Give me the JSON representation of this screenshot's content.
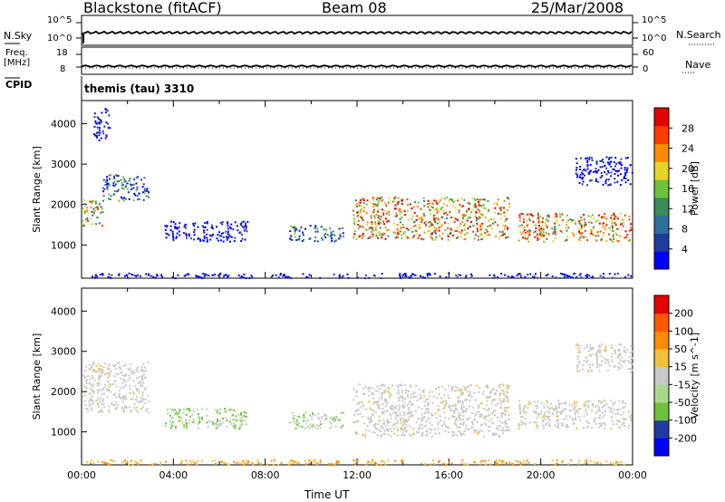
{
  "header": {
    "station": "Blackstone (fitACF)",
    "beam": "Beam 08",
    "date": "25/Mar/2008"
  },
  "summary_panels": {
    "nsky_label": "N.Sky",
    "nsky_ticks": [
      "10^5",
      "10^0"
    ],
    "nsearch_label": "N.Search",
    "nsearch_ticks": [
      "10^5",
      "10^0"
    ],
    "freq_label_line1": "Freq.",
    "freq_label_line2": "[MHz]",
    "freq_ticks": [
      "18",
      "8"
    ],
    "nave_label": "Nave",
    "nave_ticks": [
      "60",
      "0"
    ],
    "cpid_label": "CPID",
    "cpid_value": "themis (tau) 3310"
  },
  "colors": {
    "power_scale": [
      "#0000ff",
      "#1e3ca0",
      "#2f6f9e",
      "#3a8a5a",
      "#6cc23a",
      "#e6d42a",
      "#ff8c00",
      "#ff3a00",
      "#e60000"
    ],
    "velocity_scale": [
      "#0000ff",
      "#1e3ca0",
      "#6cc23a",
      "#a9d88c",
      "#c8c8c8",
      "#f0c23a",
      "#ff8c00",
      "#ff5a00",
      "#e60000"
    ],
    "ground_scatter": "#c8c8c8"
  },
  "chart_data": [
    {
      "type": "heatmap",
      "name": "power",
      "ylabel": "Slant Range [km]",
      "xlabel": "Time UT",
      "colorbar_label": "Power [dB]",
      "colorbar_ticks": [
        "28",
        "24",
        "20",
        "16",
        "12",
        "8",
        "4"
      ],
      "colorbar_range": [
        0,
        32
      ],
      "y_ticks": [
        "4000",
        "3000",
        "2000",
        "1000"
      ],
      "ylim": [
        180,
        4570
      ],
      "xlim": [
        0,
        24
      ],
      "x_ticks": [
        "00:00",
        "04:00",
        "08:00",
        "12:00",
        "16:00",
        "20:00",
        "00:00"
      ],
      "regions": [
        {
          "t": [
            0.0,
            0.9
          ],
          "r": [
            1450,
            2150
          ],
          "level": "mixed-high"
        },
        {
          "t": [
            0.9,
            2.9
          ],
          "r": [
            2100,
            2750
          ],
          "level": "mixed"
        },
        {
          "t": [
            3.6,
            7.2
          ],
          "r": [
            1100,
            1600
          ],
          "level": "low"
        },
        {
          "t": [
            9.0,
            11.4
          ],
          "r": [
            1100,
            1500
          ],
          "level": "mixed"
        },
        {
          "t": [
            11.8,
            18.6
          ],
          "r": [
            1150,
            2200
          ],
          "level": "high"
        },
        {
          "t": [
            19.0,
            23.9
          ],
          "r": [
            1100,
            1800
          ],
          "level": "high"
        },
        {
          "t": [
            0.5,
            1.2
          ],
          "r": [
            3600,
            4400
          ],
          "level": "low"
        },
        {
          "t": [
            21.5,
            24.0
          ],
          "r": [
            2500,
            3200
          ],
          "level": "low"
        },
        {
          "t": [
            0.0,
            24.0
          ],
          "r": [
            200,
            320
          ],
          "level": "low"
        }
      ]
    },
    {
      "type": "heatmap",
      "name": "velocity",
      "ylabel": "Slant Range [km]",
      "xlabel": "Time UT",
      "colorbar_label": "Velocity [m s^-1]",
      "colorbar_ticks": [
        "200",
        "100",
        "50",
        "15",
        "-15",
        "-50",
        "-100",
        "-200"
      ],
      "colorbar_range": [
        -250,
        250
      ],
      "y_ticks": [
        "4000",
        "3000",
        "2000",
        "1000"
      ],
      "ylim": [
        180,
        4570
      ],
      "xlim": [
        0,
        24
      ],
      "x_ticks": [
        "00:00",
        "04:00",
        "08:00",
        "12:00",
        "16:00",
        "20:00",
        "00:00"
      ],
      "regions": [
        {
          "t": [
            0.0,
            2.9
          ],
          "r": [
            1500,
            2750
          ],
          "level": "ground"
        },
        {
          "t": [
            3.6,
            7.2
          ],
          "r": [
            1100,
            1600
          ],
          "level": "mixed"
        },
        {
          "t": [
            9.0,
            11.4
          ],
          "r": [
            1100,
            1500
          ],
          "level": "mixed"
        },
        {
          "t": [
            11.8,
            18.6
          ],
          "r": [
            900,
            2200
          ],
          "level": "ground"
        },
        {
          "t": [
            19.0,
            23.9
          ],
          "r": [
            1100,
            1800
          ],
          "level": "ground"
        },
        {
          "t": [
            21.5,
            24.0
          ],
          "r": [
            2500,
            3200
          ],
          "level": "ground"
        },
        {
          "t": [
            0.0,
            24.0
          ],
          "r": [
            200,
            320
          ],
          "level": "orange"
        }
      ]
    }
  ]
}
